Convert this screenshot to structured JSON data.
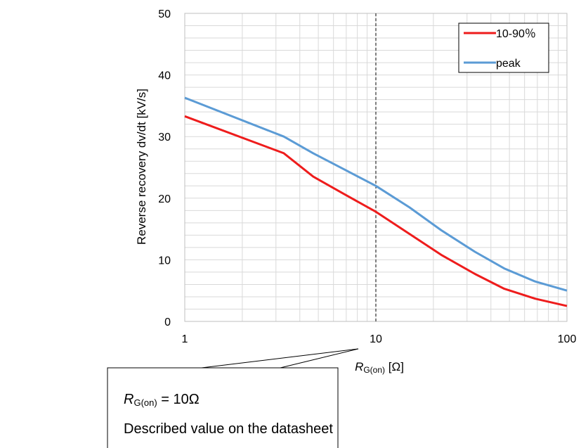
{
  "chart_data": {
    "type": "line",
    "xscale": "log",
    "xlim": [
      1,
      100
    ],
    "ylim": [
      0,
      50
    ],
    "xticks": [
      "1",
      "10",
      "100"
    ],
    "yticks": [
      "0",
      "10",
      "20",
      "30",
      "40",
      "50"
    ],
    "ylabel": "Reverse recovery dv/dt [kV/s]",
    "xlabel": {
      "symbol": "R",
      "subscript": "G(on)",
      "unit": "[Ω]"
    },
    "grid": true,
    "legend_position": "top-right",
    "reference_line": {
      "x": 10,
      "style": "dashed"
    },
    "series": [
      {
        "name": "10-90％",
        "color": "#ee1c1c",
        "points": [
          [
            1,
            33.3
          ],
          [
            3.3,
            27.3
          ],
          [
            4.7,
            23.5
          ],
          [
            6.8,
            20.7
          ],
          [
            10,
            17.8
          ],
          [
            15,
            14.2
          ],
          [
            22,
            10.8
          ],
          [
            33,
            7.7
          ],
          [
            47,
            5.3
          ],
          [
            68,
            3.7
          ],
          [
            100,
            2.5
          ]
        ]
      },
      {
        "name": "peak",
        "color": "#5b9bd5",
        "points": [
          [
            1,
            36.3
          ],
          [
            3.3,
            30
          ],
          [
            4.7,
            27.3
          ],
          [
            6.8,
            24.7
          ],
          [
            10,
            22
          ],
          [
            15,
            18.5
          ],
          [
            22,
            14.8
          ],
          [
            33,
            11.3
          ],
          [
            47,
            8.6
          ],
          [
            68,
            6.5
          ],
          [
            100,
            5
          ]
        ]
      }
    ]
  },
  "callout": {
    "line1_symbol": "R",
    "line1_subscript": "G(on)",
    "line1_rest": " = 10Ω",
    "line2": "Described value on the datasheet"
  }
}
